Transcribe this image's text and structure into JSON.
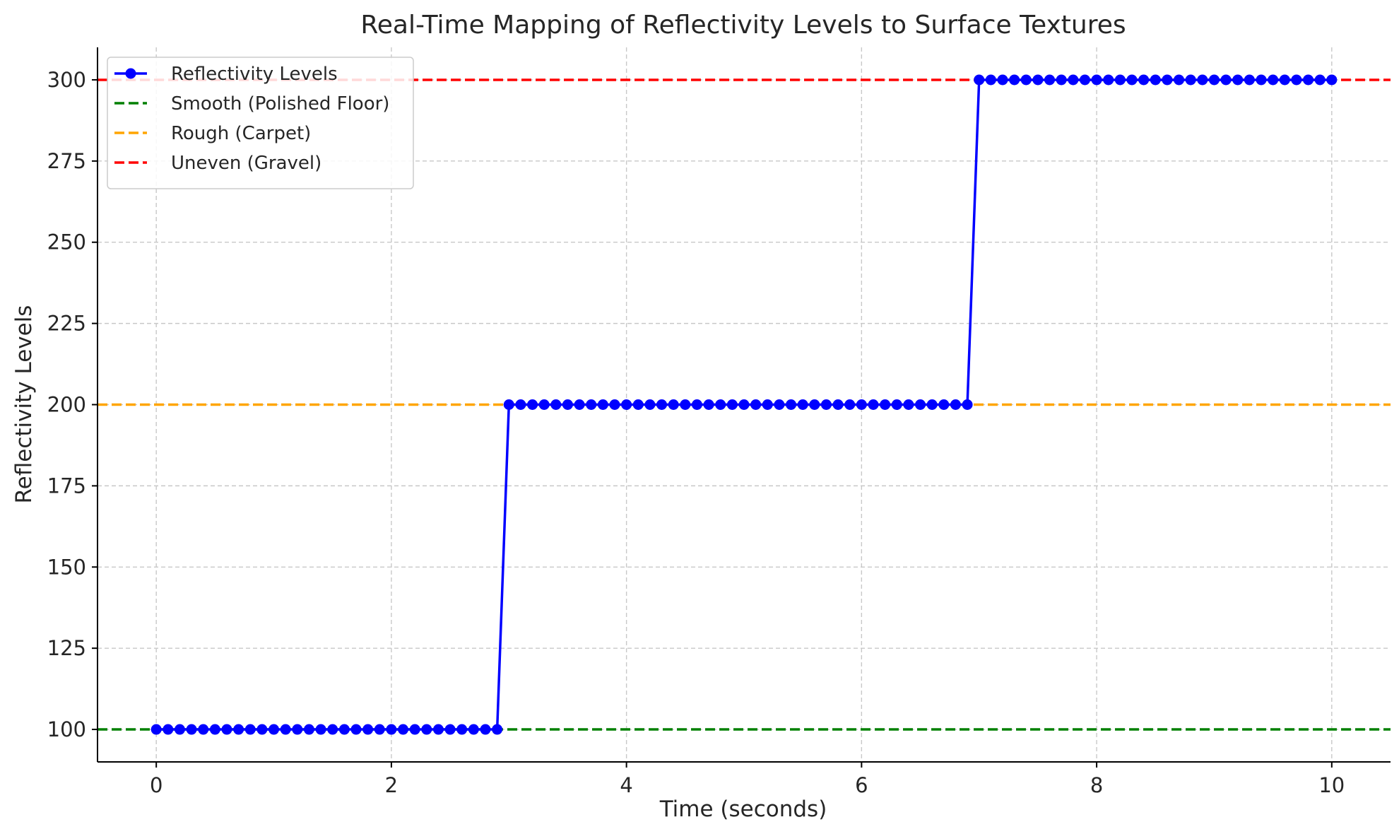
{
  "chart_data": {
    "type": "line",
    "title": "Real-Time Mapping of Reflectivity Levels to Surface Textures",
    "xlabel": "Time (seconds)",
    "ylabel": "Reflectivity Levels",
    "xlim": [
      -0.5,
      10.5
    ],
    "ylim": [
      90,
      310
    ],
    "xticks": [
      0,
      2,
      4,
      6,
      8,
      10
    ],
    "xtick_labels": [
      "0",
      "2",
      "4",
      "6",
      "8",
      "10"
    ],
    "yticks": [
      100,
      125,
      150,
      175,
      200,
      225,
      250,
      275,
      300
    ],
    "ytick_labels": [
      "100",
      "125",
      "150",
      "175",
      "200",
      "225",
      "250",
      "275",
      "300"
    ],
    "grid": true,
    "legend_position": "top-left",
    "series": [
      {
        "name": "Reflectivity Levels",
        "color": "#0000ff",
        "style": "solid",
        "marker": "circle",
        "x": [
          0,
          0.1,
          0.2,
          0.3,
          0.4,
          0.5,
          0.6,
          0.7,
          0.8,
          0.9,
          1.0,
          1.1,
          1.2,
          1.3,
          1.4,
          1.5,
          1.6,
          1.7,
          1.8,
          1.9,
          2.0,
          2.1,
          2.2,
          2.3,
          2.4,
          2.5,
          2.6,
          2.7,
          2.8,
          2.9,
          3.0,
          3.1,
          3.2,
          3.3,
          3.4,
          3.5,
          3.6,
          3.7,
          3.8,
          3.9,
          4.0,
          4.1,
          4.2,
          4.3,
          4.4,
          4.5,
          4.6,
          4.7,
          4.8,
          4.9,
          5.0,
          5.1,
          5.2,
          5.3,
          5.4,
          5.5,
          5.6,
          5.7,
          5.8,
          5.9,
          6.0,
          6.1,
          6.2,
          6.3,
          6.4,
          6.5,
          6.6,
          6.7,
          6.8,
          6.9,
          7.0,
          7.1,
          7.2,
          7.3,
          7.4,
          7.5,
          7.6,
          7.7,
          7.8,
          7.9,
          8.0,
          8.1,
          8.2,
          8.3,
          8.4,
          8.5,
          8.6,
          8.7,
          8.8,
          8.9,
          9.0,
          9.1,
          9.2,
          9.3,
          9.4,
          9.5,
          9.6,
          9.7,
          9.8,
          9.9,
          10.0
        ],
        "y": [
          100,
          100,
          100,
          100,
          100,
          100,
          100,
          100,
          100,
          100,
          100,
          100,
          100,
          100,
          100,
          100,
          100,
          100,
          100,
          100,
          100,
          100,
          100,
          100,
          100,
          100,
          100,
          100,
          100,
          100,
          200,
          200,
          200,
          200,
          200,
          200,
          200,
          200,
          200,
          200,
          200,
          200,
          200,
          200,
          200,
          200,
          200,
          200,
          200,
          200,
          200,
          200,
          200,
          200,
          200,
          200,
          200,
          200,
          200,
          200,
          200,
          200,
          200,
          200,
          200,
          200,
          200,
          200,
          200,
          200,
          300,
          300,
          300,
          300,
          300,
          300,
          300,
          300,
          300,
          300,
          300,
          300,
          300,
          300,
          300,
          300,
          300,
          300,
          300,
          300,
          300,
          300,
          300,
          300,
          300,
          300,
          300,
          300,
          300,
          300,
          300
        ]
      }
    ],
    "reference_lines": [
      {
        "name": "Smooth (Polished Floor)",
        "y": 100,
        "color": "#008000",
        "style": "dashed"
      },
      {
        "name": "Rough (Carpet)",
        "y": 200,
        "color": "#ffa500",
        "style": "dashed"
      },
      {
        "name": "Uneven (Gravel)",
        "y": 300,
        "color": "#ff0000",
        "style": "dashed"
      }
    ]
  }
}
